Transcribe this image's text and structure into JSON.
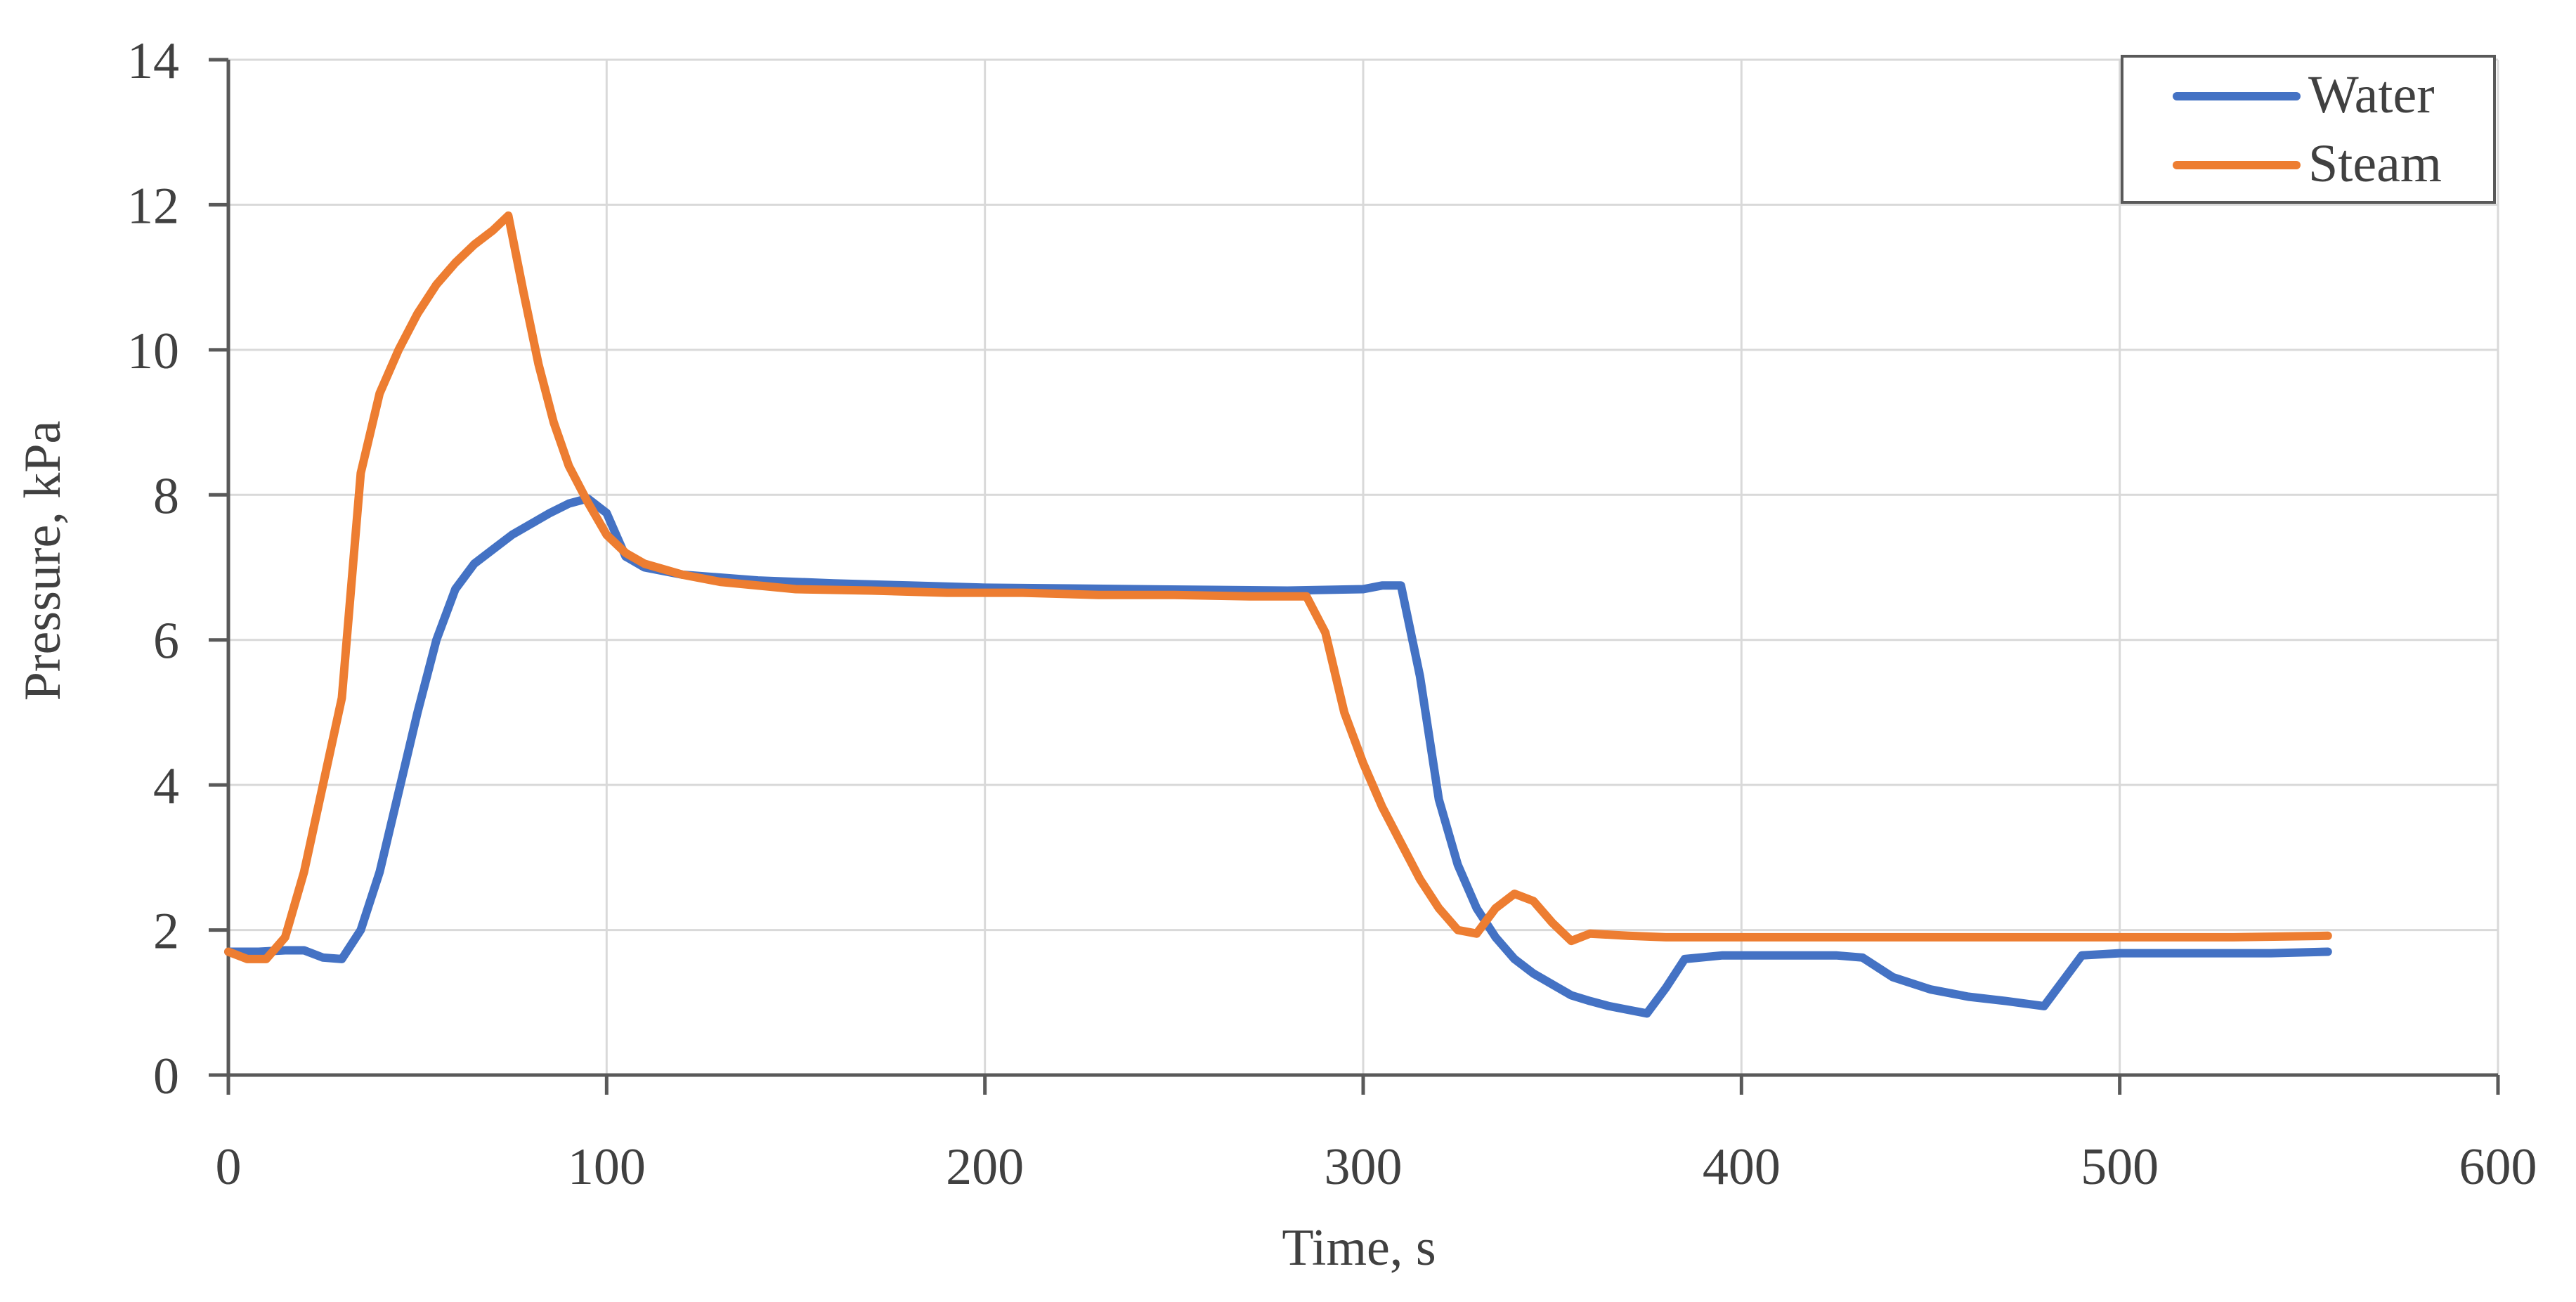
{
  "chart_data": {
    "type": "line",
    "title": "",
    "xlabel": "Time, s",
    "ylabel": "Pressure, kPa",
    "xlim": [
      0,
      600
    ],
    "ylim": [
      0,
      14
    ],
    "xticks": [
      "0",
      "100",
      "200",
      "300",
      "400",
      "500",
      "600"
    ],
    "yticks": [
      "0",
      "2",
      "4",
      "6",
      "8",
      "10",
      "12",
      "14"
    ],
    "grid": true,
    "legend_position": "top-right",
    "series": [
      {
        "name": "Water",
        "color": "#4472C4",
        "points": [
          [
            0,
            1.7
          ],
          [
            8,
            1.7
          ],
          [
            15,
            1.72
          ],
          [
            20,
            1.72
          ],
          [
            25,
            1.62
          ],
          [
            30,
            1.6
          ],
          [
            35,
            2.0
          ],
          [
            40,
            2.8
          ],
          [
            45,
            3.9
          ],
          [
            50,
            5.0
          ],
          [
            55,
            6.0
          ],
          [
            60,
            6.7
          ],
          [
            65,
            7.05
          ],
          [
            70,
            7.25
          ],
          [
            75,
            7.45
          ],
          [
            80,
            7.6
          ],
          [
            85,
            7.75
          ],
          [
            90,
            7.88
          ],
          [
            95,
            7.95
          ],
          [
            100,
            7.75
          ],
          [
            105,
            7.15
          ],
          [
            110,
            7.0
          ],
          [
            120,
            6.9
          ],
          [
            140,
            6.82
          ],
          [
            160,
            6.78
          ],
          [
            180,
            6.75
          ],
          [
            200,
            6.72
          ],
          [
            220,
            6.71
          ],
          [
            240,
            6.7
          ],
          [
            260,
            6.69
          ],
          [
            280,
            6.68
          ],
          [
            300,
            6.7
          ],
          [
            305,
            6.75
          ],
          [
            310,
            6.75
          ],
          [
            315,
            5.5
          ],
          [
            320,
            3.8
          ],
          [
            325,
            2.9
          ],
          [
            330,
            2.3
          ],
          [
            335,
            1.9
          ],
          [
            340,
            1.6
          ],
          [
            345,
            1.4
          ],
          [
            350,
            1.25
          ],
          [
            355,
            1.1
          ],
          [
            360,
            1.02
          ],
          [
            365,
            0.95
          ],
          [
            370,
            0.9
          ],
          [
            375,
            0.85
          ],
          [
            380,
            1.2
          ],
          [
            385,
            1.6
          ],
          [
            395,
            1.65
          ],
          [
            410,
            1.65
          ],
          [
            425,
            1.65
          ],
          [
            432,
            1.62
          ],
          [
            440,
            1.35
          ],
          [
            450,
            1.18
          ],
          [
            460,
            1.08
          ],
          [
            470,
            1.02
          ],
          [
            480,
            0.95
          ],
          [
            485,
            1.3
          ],
          [
            490,
            1.65
          ],
          [
            500,
            1.68
          ],
          [
            520,
            1.68
          ],
          [
            540,
            1.68
          ],
          [
            555,
            1.7
          ]
        ]
      },
      {
        "name": "Steam",
        "color": "#ED7D31",
        "points": [
          [
            0,
            1.7
          ],
          [
            5,
            1.6
          ],
          [
            10,
            1.6
          ],
          [
            15,
            1.9
          ],
          [
            20,
            2.8
          ],
          [
            25,
            4.0
          ],
          [
            30,
            5.2
          ],
          [
            35,
            8.3
          ],
          [
            40,
            9.4
          ],
          [
            45,
            10.0
          ],
          [
            50,
            10.5
          ],
          [
            55,
            10.9
          ],
          [
            60,
            11.2
          ],
          [
            65,
            11.45
          ],
          [
            70,
            11.65
          ],
          [
            74,
            11.85
          ],
          [
            78,
            10.8
          ],
          [
            82,
            9.8
          ],
          [
            86,
            9.0
          ],
          [
            90,
            8.4
          ],
          [
            95,
            7.9
          ],
          [
            100,
            7.45
          ],
          [
            105,
            7.2
          ],
          [
            110,
            7.05
          ],
          [
            120,
            6.9
          ],
          [
            130,
            6.8
          ],
          [
            150,
            6.7
          ],
          [
            170,
            6.68
          ],
          [
            190,
            6.65
          ],
          [
            210,
            6.65
          ],
          [
            230,
            6.62
          ],
          [
            250,
            6.62
          ],
          [
            270,
            6.6
          ],
          [
            285,
            6.6
          ],
          [
            290,
            6.1
          ],
          [
            295,
            5.0
          ],
          [
            300,
            4.3
          ],
          [
            305,
            3.7
          ],
          [
            310,
            3.2
          ],
          [
            315,
            2.7
          ],
          [
            320,
            2.3
          ],
          [
            325,
            2.0
          ],
          [
            330,
            1.95
          ],
          [
            335,
            2.3
          ],
          [
            340,
            2.5
          ],
          [
            345,
            2.4
          ],
          [
            350,
            2.1
          ],
          [
            355,
            1.85
          ],
          [
            360,
            1.95
          ],
          [
            370,
            1.92
          ],
          [
            380,
            1.9
          ],
          [
            400,
            1.9
          ],
          [
            450,
            1.9
          ],
          [
            500,
            1.9
          ],
          [
            530,
            1.9
          ],
          [
            555,
            1.92
          ]
        ]
      }
    ]
  }
}
